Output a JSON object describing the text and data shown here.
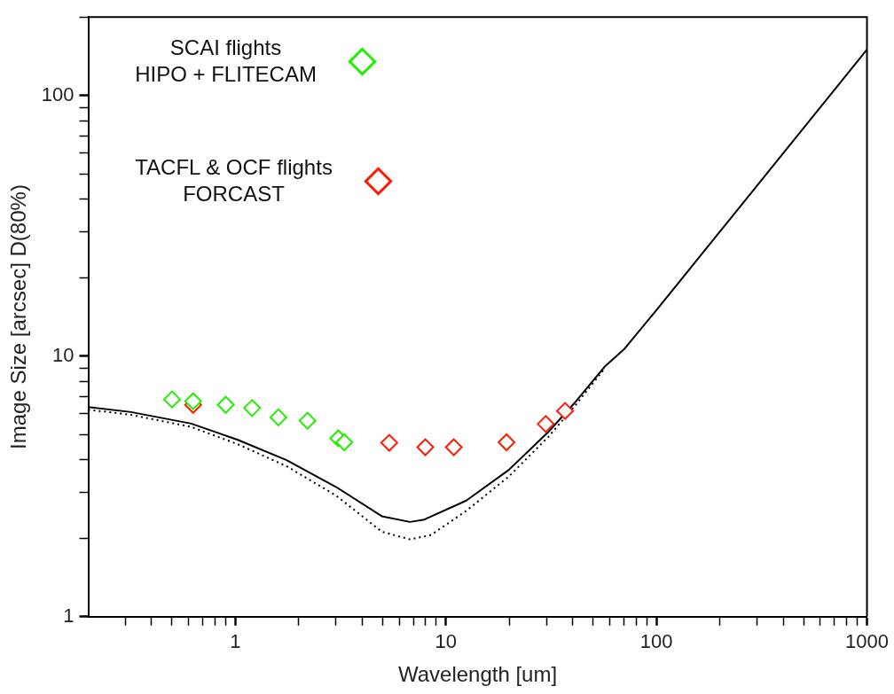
{
  "chart_data": {
    "type": "scatter",
    "xlabel": "Wavelength [um]",
    "ylabel": "Image Size [arcsec] D(80%)",
    "log": "xy",
    "grid": false,
    "legend": "top left",
    "marker": "diamond",
    "xlim": [
      0.2,
      1000
    ],
    "ylim": [
      1,
      200
    ],
    "xticks": [
      {
        "value": 0.3,
        "label": null
      },
      {
        "value": 0.4,
        "label": null
      },
      {
        "value": 0.5,
        "label": null
      },
      {
        "value": 0.6,
        "label": null
      },
      {
        "value": 0.7,
        "label": null
      },
      {
        "value": 0.8,
        "label": null
      },
      {
        "value": 0.9,
        "label": null
      },
      1,
      {
        "value": 2,
        "label": null
      },
      {
        "value": 3,
        "label": null
      },
      {
        "value": 4,
        "label": null
      },
      {
        "value": 5,
        "label": null
      },
      {
        "value": 6,
        "label": null
      },
      {
        "value": 7,
        "label": null
      },
      {
        "value": 8,
        "label": null
      },
      {
        "value": 9,
        "label": null
      },
      10,
      {
        "value": 20,
        "label": null
      },
      {
        "value": 30,
        "label": null
      },
      {
        "value": 40,
        "label": null
      },
      {
        "value": 50,
        "label": null
      },
      {
        "value": 60,
        "label": null
      },
      {
        "value": 70,
        "label": null
      },
      {
        "value": 80,
        "label": null
      },
      {
        "value": 90,
        "label": null
      },
      100,
      {
        "value": 200,
        "label": null
      },
      {
        "value": 300,
        "label": null
      },
      {
        "value": 400,
        "label": null
      },
      {
        "value": 500,
        "label": null
      },
      {
        "value": 600,
        "label": null
      },
      {
        "value": 700,
        "label": null
      },
      {
        "value": 800,
        "label": null
      },
      {
        "value": 900,
        "label": null
      },
      1000
    ],
    "yticks": [
      1,
      {
        "value": 2,
        "label": null
      },
      {
        "value": 3,
        "label": null
      },
      {
        "value": 4,
        "label": null
      },
      {
        "value": 5,
        "label": null
      },
      {
        "value": 6,
        "label": null
      },
      {
        "value": 7,
        "label": null
      },
      {
        "value": 8,
        "label": null
      },
      {
        "value": 9,
        "label": null
      },
      10,
      {
        "value": 20,
        "label": null
      },
      {
        "value": 30,
        "label": null
      },
      {
        "value": 40,
        "label": null
      },
      {
        "value": 50,
        "label": null
      },
      {
        "value": 60,
        "label": null
      },
      {
        "value": 70,
        "label": null
      },
      {
        "value": 80,
        "label": null
      },
      {
        "value": 90,
        "label": null
      },
      100,
      {
        "value": 200,
        "label": null
      }
    ],
    "series": [
      {
        "type": "line",
        "color": "#000000",
        "line_style": "solid",
        "marker": "none",
        "x": [
          0.2,
          0.319,
          0.616,
          1.02,
          1.75,
          3.0,
          4.96,
          6.75,
          7.9,
          12.5,
          19.9,
          30.6,
          41.5,
          56.7,
          70,
          100,
          200,
          1000
        ],
        "values": [
          6.37,
          6.1,
          5.51,
          4.78,
          3.99,
          3.15,
          2.43,
          2.31,
          2.36,
          2.79,
          3.66,
          5.11,
          6.71,
          9.1,
          10.6,
          15,
          30,
          150
        ]
      },
      {
        "type": "line",
        "color": "#000000",
        "line_style": "dotted",
        "marker": "none",
        "x": [
          0.2,
          0.319,
          0.616,
          1.02,
          1.75,
          3.0,
          4.96,
          6.75,
          8.51,
          12.5,
          19.9,
          30.6,
          41.5,
          56.7
        ],
        "values": [
          6.23,
          5.95,
          5.35,
          4.6,
          3.78,
          2.92,
          2.12,
          1.98,
          2.06,
          2.55,
          3.45,
          4.89,
          6.52,
          8.96
        ]
      },
      {
        "type": "scatter",
        "name": "SCAI flights\nHIPO + FLITECAM",
        "color": "#22ee00",
        "x": [
          0.5,
          0.63,
          0.9,
          1.2,
          1.6,
          2.2,
          3.08,
          3.29
        ],
        "values": [
          6.82,
          6.71,
          6.5,
          6.32,
          5.82,
          5.65,
          4.84,
          4.67
        ]
      },
      {
        "type": "scatter",
        "name": "TACFL & OCF flights\nFORCAST",
        "color": "#ff1a00",
        "x": [
          0.63,
          5.38,
          7.98,
          10.9,
          19.4,
          29.8,
          36.8
        ],
        "values": [
          6.5,
          4.65,
          4.47,
          4.47,
          4.67,
          5.49,
          6.16
        ]
      }
    ]
  }
}
